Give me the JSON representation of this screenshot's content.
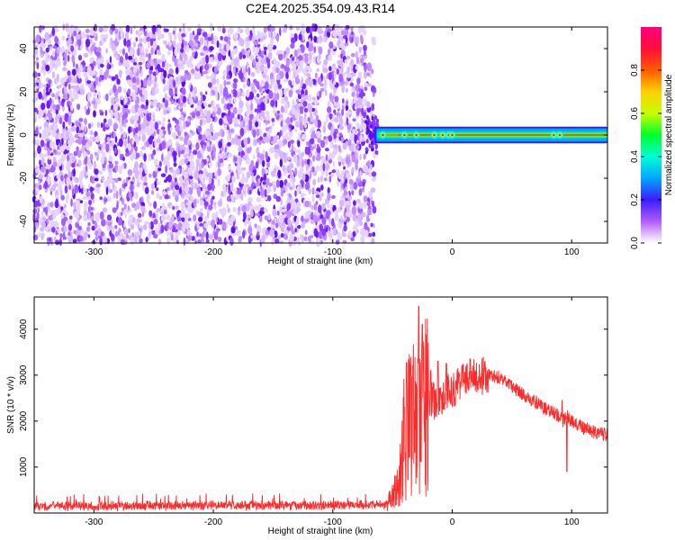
{
  "title": "C2E4.2025.354.09.43.R14",
  "chart_data": [
    {
      "type": "heatmap",
      "name": "spectrogram",
      "xlabel": "Height of straight line (km)",
      "ylabel": "Frequency (Hz)",
      "xlim": [
        -350,
        130
      ],
      "ylim": [
        -50,
        50
      ],
      "xticks": [
        -300,
        -200,
        -100,
        0,
        100
      ],
      "yticks": [
        -40,
        -20,
        0,
        20,
        40
      ],
      "noise_region_x": [
        -350,
        -65
      ],
      "signal_band": {
        "x_start": -65,
        "x_end": 130,
        "frequency_center": 0,
        "half_width_hz": 3
      },
      "colorbar": {
        "label": "Normalized spectral amplitude",
        "range": [
          0.0,
          1.0
        ],
        "ticks": [
          0.0,
          0.2,
          0.4,
          0.6,
          0.8
        ],
        "colors": [
          "#ffffff",
          "#b15cff",
          "#3b1bff",
          "#00a6ff",
          "#00ffd5",
          "#00ff2a",
          "#c8ff00",
          "#ffd000",
          "#ff5a00",
          "#ff0f3a",
          "#ff0080"
        ]
      }
    },
    {
      "type": "line",
      "name": "snr",
      "xlabel": "Height of straight line (km)",
      "ylabel": "SNR (10 * v/v)",
      "xlim": [
        -350,
        130
      ],
      "ylim": [
        0,
        4700
      ],
      "xticks": [
        -300,
        -200,
        -100,
        0,
        100
      ],
      "yticks": [
        1000,
        2000,
        3000,
        4000
      ],
      "color": "#ff2a2a",
      "envelope": {
        "x": [
          -350,
          -300,
          -200,
          -100,
          -55,
          -45,
          -40,
          -35,
          -30,
          -25,
          -20,
          -10,
          0,
          10,
          20,
          30,
          40,
          50,
          60,
          70,
          80,
          90,
          92,
          96,
          100,
          110,
          120,
          130
        ],
        "y": [
          150,
          150,
          160,
          170,
          180,
          600,
          1700,
          2000,
          2200,
          2300,
          2400,
          2500,
          2700,
          2850,
          2950,
          3000,
          2950,
          2750,
          2550,
          2400,
          2250,
          2100,
          2000,
          2100,
          2000,
          1850,
          1750,
          1700
        ]
      },
      "spikes": [
        {
          "x": -40,
          "y": 2300
        },
        {
          "x": -33,
          "y": 3200
        },
        {
          "x": -28,
          "y": 4500
        },
        {
          "x": -25,
          "y": 4100
        },
        {
          "x": -24,
          "y": 3600
        },
        {
          "x": -18,
          "y": 3100
        },
        {
          "x": -12,
          "y": 3300
        },
        {
          "x": -5,
          "y": 3250
        },
        {
          "x": 15,
          "y": 3350
        },
        {
          "x": 92,
          "y": 2450
        },
        {
          "x": 96,
          "y": 900
        }
      ]
    }
  ]
}
